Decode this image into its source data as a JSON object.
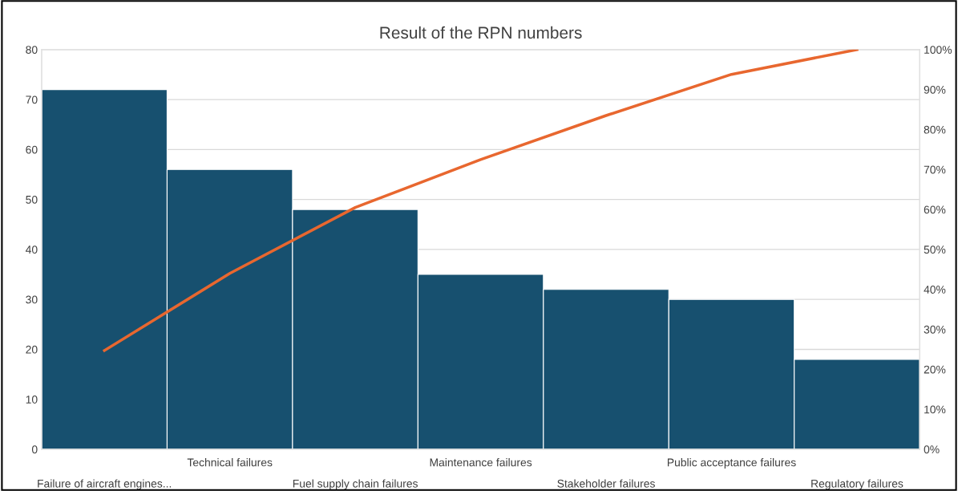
{
  "chart_data": {
    "type": "bar",
    "title": "Result of the RPN numbers",
    "categories": [
      "Failure of aircraft engines...",
      "Technical failures",
      "Fuel supply chain failures",
      "Maintenance failures",
      "Stakeholder failures",
      "Public acceptance failures",
      "Regulatory failures"
    ],
    "series": [
      {
        "color": "#17506f",
        "values": [
          72,
          56,
          48,
          35,
          32,
          30,
          18
        ]
      },
      {
        "type": "line",
        "axis": "y2",
        "color": "#e8672f",
        "values": [
          24.7,
          44.0,
          60.5,
          72.5,
          83.5,
          93.8,
          100
        ]
      }
    ],
    "ylim": [
      0,
      80
    ],
    "yticks": [
      0,
      10,
      20,
      30,
      40,
      50,
      60,
      70,
      80
    ],
    "y2lim": [
      0,
      100
    ],
    "y2ticks": [
      {
        "value": 0,
        "label": "0%"
      },
      {
        "value": 10,
        "label": "10%"
      },
      {
        "value": 20,
        "label": "20%"
      },
      {
        "value": 30,
        "label": "30%"
      },
      {
        "value": 40,
        "label": "40%"
      },
      {
        "value": 50,
        "label": "50%"
      },
      {
        "value": 60,
        "label": "60%"
      },
      {
        "value": 70,
        "label": "70%"
      },
      {
        "value": 80,
        "label": "80%"
      },
      {
        "value": 90,
        "label": "90%"
      },
      {
        "value": 100,
        "label": "100%"
      }
    ],
    "grid": "y",
    "marker": "none",
    "line_style": "solid"
  }
}
